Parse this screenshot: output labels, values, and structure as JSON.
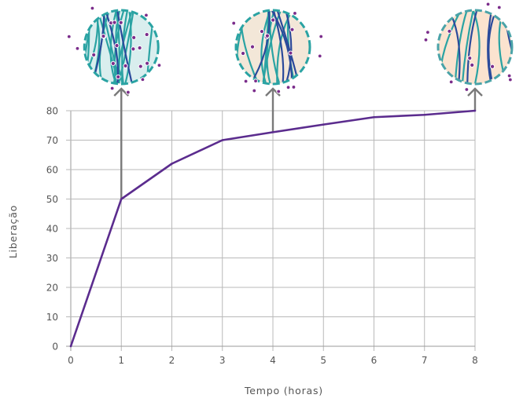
{
  "chart_data": {
    "type": "line",
    "xlabel": "Tempo (horas)",
    "ylabel": "Liberação",
    "x": [
      0,
      1,
      2,
      3,
      4,
      5,
      6,
      7,
      8
    ],
    "series": [
      {
        "values": [
          0,
          50,
          62,
          70,
          72.7,
          75.3,
          77.8,
          78.6,
          80
        ]
      }
    ],
    "x_ticks": [
      "0",
      "1",
      "2",
      "3",
      "4",
      "5",
      "6",
      "7",
      "8"
    ],
    "y_ticks": [
      "0",
      "10",
      "20",
      "30",
      "40",
      "50",
      "60",
      "70",
      "80"
    ],
    "xlim": [
      0,
      8
    ],
    "ylim": [
      0,
      80
    ],
    "grid": true,
    "colors": {
      "line": "#5b2c8e",
      "fiber_teal": "#2aa3a3",
      "fiber_blue": "#2b4a9b",
      "drug_dot": "#7b2d8b",
      "early_fill": "#d9eeee",
      "late_fill": "#fbe3cf",
      "arrow": "#7a7a7a"
    },
    "annotations": [
      {
        "x": 1,
        "y": 50,
        "icon": "dense-fiber-matrix-icon",
        "fill": "early"
      },
      {
        "x": 4,
        "y": 72.7,
        "icon": "partially-degraded-matrix-icon",
        "fill": "mid"
      },
      {
        "x": 8,
        "y": 80,
        "icon": "degraded-matrix-icon",
        "fill": "late"
      }
    ]
  }
}
